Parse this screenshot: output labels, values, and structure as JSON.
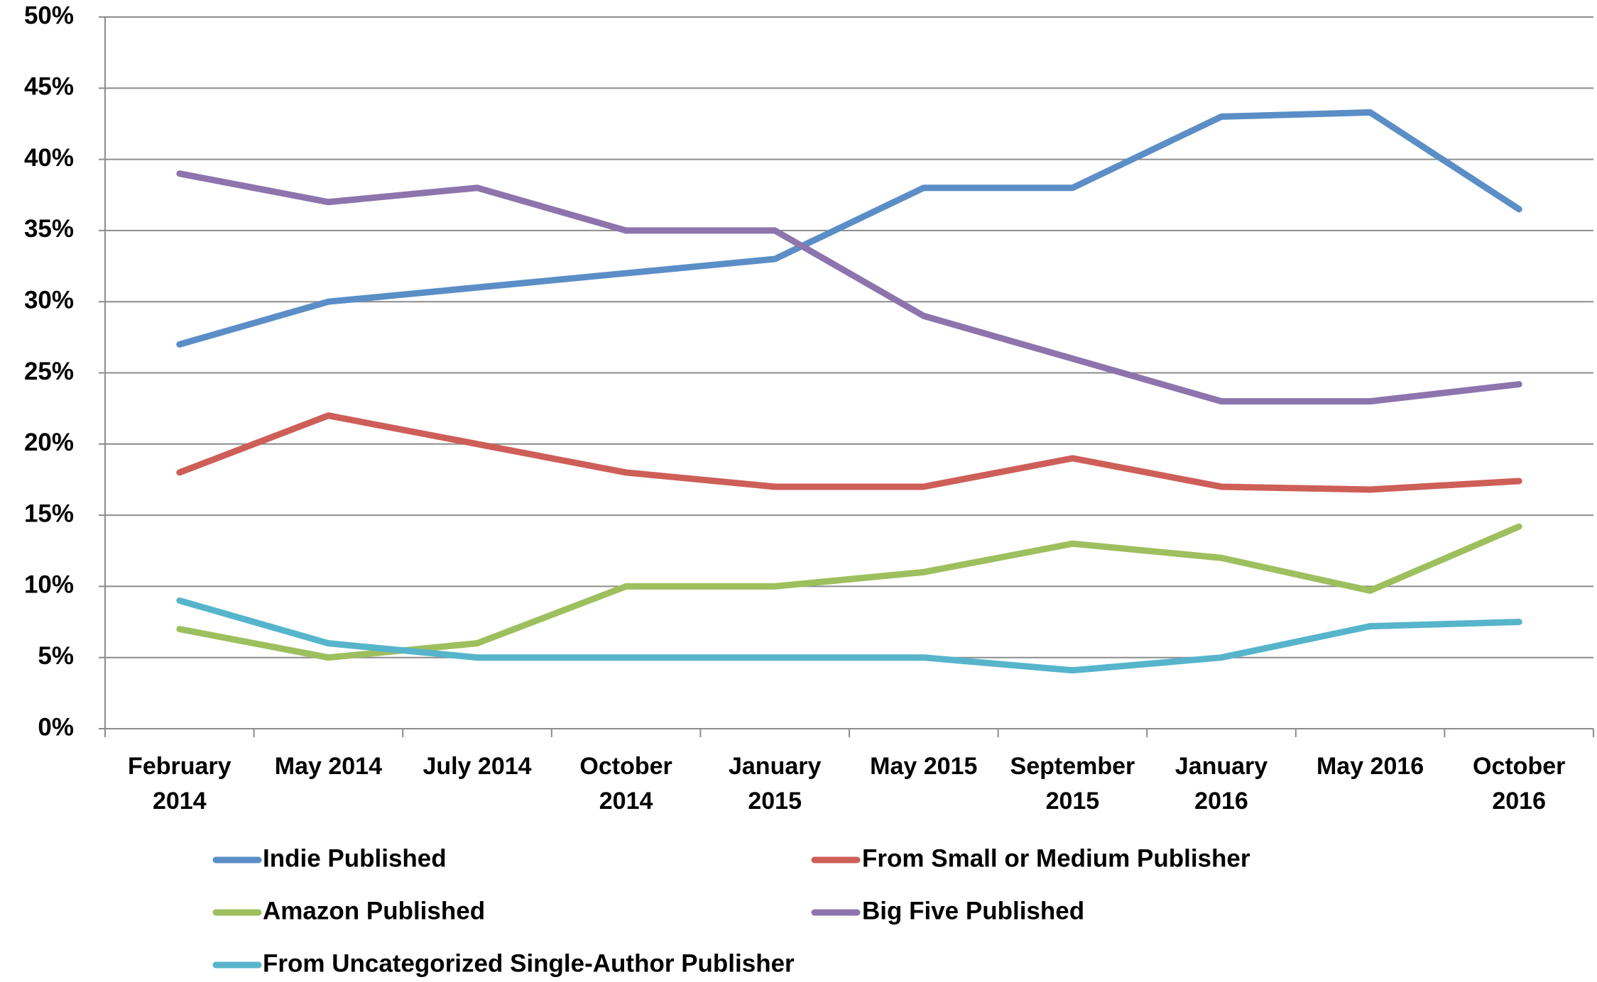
{
  "chart_data": {
    "type": "line",
    "categories": [
      "February 2014",
      "May 2014",
      "July 2014",
      "October 2014",
      "January 2015",
      "May 2015",
      "September 2015",
      "January 2016",
      "May 2016",
      "October 2016"
    ],
    "series": [
      {
        "name": "Indie Published",
        "color": "#5b8ec6",
        "values": [
          27,
          30,
          31,
          32,
          33,
          38,
          38,
          43,
          43.3,
          36.5
        ]
      },
      {
        "name": "From Small or Medium Publisher",
        "color": "#cd5f58",
        "values": [
          18,
          22,
          20,
          18,
          17,
          17,
          19,
          17,
          16.8,
          17.4
        ]
      },
      {
        "name": "Amazon Published",
        "color": "#9dbf5e",
        "values": [
          7,
          5,
          6,
          10,
          10,
          11,
          13,
          12,
          9.7,
          14.2
        ]
      },
      {
        "name": "Big Five Published",
        "color": "#8e74ad",
        "values": [
          39,
          37,
          38,
          35,
          35,
          29,
          26,
          23,
          23,
          24.2
        ]
      },
      {
        "name": "From Uncategorized Single-Author Publisher",
        "color": "#57b5cb",
        "values": [
          9,
          6,
          5,
          5,
          5,
          5,
          4.1,
          5,
          7.2,
          7.5
        ]
      }
    ],
    "ylim": [
      0,
      50
    ],
    "yticks": [
      {
        "value": 0,
        "label": "0%"
      },
      {
        "value": 5,
        "label": "5%"
      },
      {
        "value": 10,
        "label": "10%"
      },
      {
        "value": 15,
        "label": "15%"
      },
      {
        "value": 20,
        "label": "20%"
      },
      {
        "value": 25,
        "label": "25%"
      },
      {
        "value": 30,
        "label": "30%"
      },
      {
        "value": 35,
        "label": "35%"
      },
      {
        "value": 40,
        "label": "40%"
      },
      {
        "value": 45,
        "label": "45%"
      },
      {
        "value": 50,
        "label": "50%"
      }
    ],
    "grid": true,
    "legend": "bottom"
  }
}
